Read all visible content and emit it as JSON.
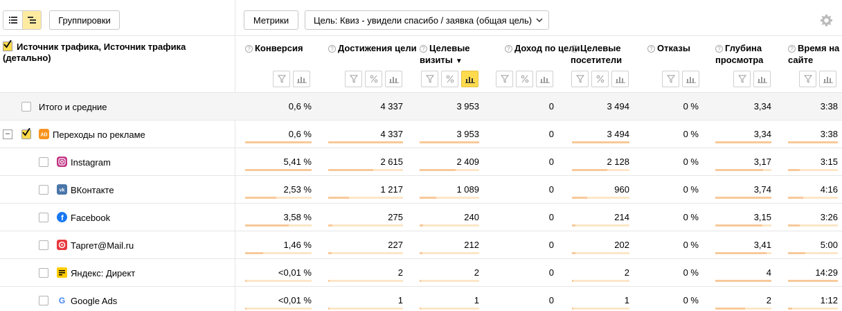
{
  "toolbar": {
    "groupings_label": "Группировки",
    "metrics_label": "Метрики",
    "goal_label": "Цель: Квиз - увидели спасибо / заявка (общая цель)"
  },
  "dimension_header": "Источник трафика, Источник трафика (детально)",
  "columns": [
    {
      "label": "Конверсия"
    },
    {
      "label": "Достижения цели"
    },
    {
      "label": "Целевые визиты"
    },
    {
      "label": "Доход по цели"
    },
    {
      "label": "Целевые посетители"
    },
    {
      "label": "Отказы"
    },
    {
      "label": "Глубина просмотра"
    },
    {
      "label": "Время на сайте"
    }
  ],
  "colors": {
    "accent": "#ffdb4d",
    "bar_bg": "#fde6c7",
    "bar_fill": "#f8c999",
    "total_bg": "#f5f5f5"
  },
  "rows": [
    {
      "label": "Итого и средние",
      "values": [
        "0,6 %",
        "4 337",
        "3 953",
        "0",
        "3 494",
        "0 %",
        "3,34",
        "3:38"
      ],
      "bars": null
    },
    {
      "label": "Переходы по рекламе",
      "icon": "ad-icon",
      "values": [
        "0,6 %",
        "4 337",
        "3 953",
        "0",
        "3 494",
        "0 %",
        "3,34",
        "3:38"
      ],
      "bars": [
        1,
        1,
        1,
        0,
        1,
        0,
        1,
        1
      ]
    },
    {
      "label": "Instagram",
      "icon": "instagram-icon",
      "values": [
        "5,41 %",
        "2 615",
        "2 409",
        "0",
        "2 128",
        "0 %",
        "3,17",
        "3:15"
      ],
      "bars": [
        1,
        0.6,
        0.61,
        0,
        0.61,
        0,
        0.85,
        0.23
      ]
    },
    {
      "label": "ВКонтакте",
      "icon": "vk-icon",
      "values": [
        "2,53 %",
        "1 217",
        "1 089",
        "0",
        "960",
        "0 %",
        "3,74",
        "4:16"
      ],
      "bars": [
        0.47,
        0.28,
        0.28,
        0,
        0.27,
        0,
        1,
        0.3
      ]
    },
    {
      "label": "Facebook",
      "icon": "facebook-icon",
      "values": [
        "3,58 %",
        "275",
        "240",
        "0",
        "214",
        "0 %",
        "3,15",
        "3:26"
      ],
      "bars": [
        0.66,
        0.06,
        0.06,
        0,
        0.06,
        0,
        0.84,
        0.24
      ]
    },
    {
      "label": "Таргет@Mail.ru",
      "icon": "mailru-icon",
      "values": [
        "1,46 %",
        "227",
        "212",
        "0",
        "202",
        "0 %",
        "3,41",
        "5:00"
      ],
      "bars": [
        0.27,
        0.05,
        0.05,
        0,
        0.06,
        0,
        0.91,
        0.35
      ]
    },
    {
      "label": "Яндекс: Директ",
      "icon": "yandex-direct-icon",
      "values": [
        "<0,01 %",
        "2",
        "2",
        "0",
        "2",
        "0 %",
        "4",
        "14:29"
      ],
      "bars": [
        0.01,
        0.01,
        0.01,
        0,
        0.01,
        0,
        1,
        1
      ]
    },
    {
      "label": "Google Ads",
      "icon": "google-icon",
      "values": [
        "<0,01 %",
        "1",
        "1",
        "0",
        "1",
        "0 %",
        "2",
        "1:12"
      ],
      "bars": [
        0.01,
        0.01,
        0.01,
        0,
        0.01,
        0,
        0.53,
        0.08
      ]
    }
  ]
}
